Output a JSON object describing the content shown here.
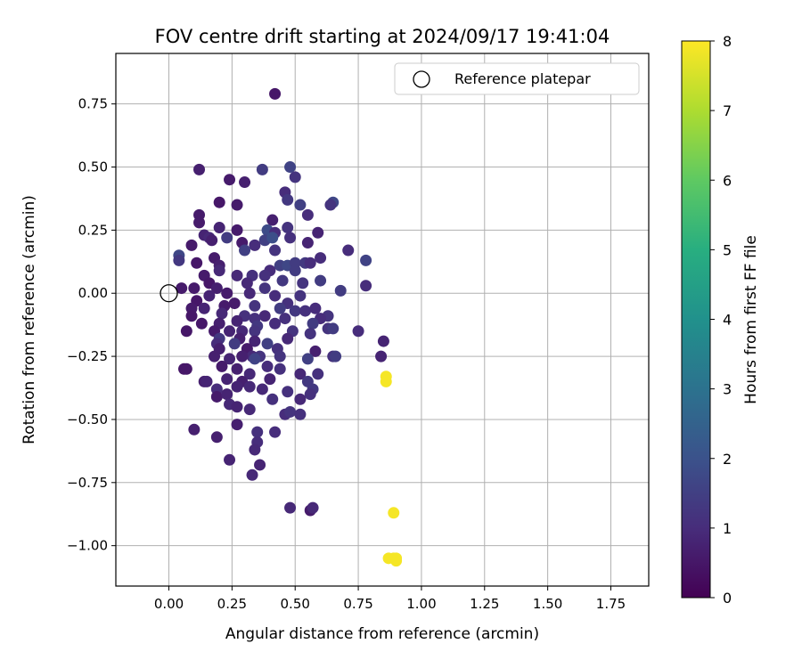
{
  "chart_data": {
    "type": "scatter",
    "title": "FOV centre drift starting at 2024/09/17 19:41:04",
    "xlabel": "Angular distance from reference (arcmin)",
    "ylabel": "Rotation from reference (arcmin)",
    "xlim": [
      -0.21,
      1.9
    ],
    "ylim": [
      -1.16,
      0.95
    ],
    "xticks": [
      "0.00",
      "0.25",
      "0.50",
      "0.75",
      "1.00",
      "1.25",
      "1.50",
      "1.75"
    ],
    "xtick_values": [
      0,
      0.25,
      0.5,
      0.75,
      1.0,
      1.25,
      1.5,
      1.75
    ],
    "yticks": [
      "0.75",
      "0.50",
      "0.25",
      "0.00",
      "−0.25",
      "−0.50",
      "−0.75",
      "−1.00"
    ],
    "ytick_values": [
      0.75,
      0.5,
      0.25,
      0,
      -0.25,
      -0.5,
      -0.75,
      -1.0
    ],
    "grid": true,
    "legend": {
      "position": "top-right",
      "entries": [
        "Reference platepar"
      ]
    },
    "reference_point": {
      "x": 0,
      "y": 0
    },
    "colorbar": {
      "label": "Hours from first FF file",
      "range": [
        0,
        8
      ],
      "ticks": [
        "0",
        "1",
        "2",
        "3",
        "4",
        "5",
        "6",
        "7",
        "8"
      ],
      "colormap": "viridis"
    },
    "points": [
      [
        0.42,
        0.79,
        0.5
      ],
      [
        0.12,
        0.49,
        0.7
      ],
      [
        0.37,
        0.49,
        1.4
      ],
      [
        0.48,
        0.5,
        1.6
      ],
      [
        0.5,
        0.46,
        1.2
      ],
      [
        0.24,
        0.45,
        0.6
      ],
      [
        0.3,
        0.44,
        0.7
      ],
      [
        0.46,
        0.4,
        1.0
      ],
      [
        0.47,
        0.37,
        1.3
      ],
      [
        0.2,
        0.36,
        0.5
      ],
      [
        0.27,
        0.35,
        0.6
      ],
      [
        0.52,
        0.35,
        1.5
      ],
      [
        0.65,
        0.36,
        1.7
      ],
      [
        0.64,
        0.35,
        1.2
      ],
      [
        0.55,
        0.31,
        1.0
      ],
      [
        0.12,
        0.31,
        0.6
      ],
      [
        0.12,
        0.28,
        0.6
      ],
      [
        0.41,
        0.29,
        0.7
      ],
      [
        0.2,
        0.26,
        0.8
      ],
      [
        0.27,
        0.25,
        0.6
      ],
      [
        0.39,
        0.25,
        1.8
      ],
      [
        0.42,
        0.24,
        1.0
      ],
      [
        0.47,
        0.26,
        1.2
      ],
      [
        0.59,
        0.24,
        0.8
      ],
      [
        0.14,
        0.23,
        0.8
      ],
      [
        0.16,
        0.22,
        0.9
      ],
      [
        0.23,
        0.22,
        1.4
      ],
      [
        0.17,
        0.21,
        0.7
      ],
      [
        0.38,
        0.21,
        1.5
      ],
      [
        0.41,
        0.22,
        1.9
      ],
      [
        0.48,
        0.22,
        1.1
      ],
      [
        0.29,
        0.2,
        0.6
      ],
      [
        0.09,
        0.19,
        0.6
      ],
      [
        0.34,
        0.19,
        1.0
      ],
      [
        0.55,
        0.2,
        0.8
      ],
      [
        0.3,
        0.17,
        1.5
      ],
      [
        0.42,
        0.17,
        1.2
      ],
      [
        0.71,
        0.17,
        1.0
      ],
      [
        0.18,
        0.14,
        0.6
      ],
      [
        0.04,
        0.15,
        1.7
      ],
      [
        0.04,
        0.13,
        1.3
      ],
      [
        0.2,
        0.11,
        0.7
      ],
      [
        0.11,
        0.12,
        0.5
      ],
      [
        0.6,
        0.14,
        1.0
      ],
      [
        0.44,
        0.11,
        1.5
      ],
      [
        0.47,
        0.11,
        1.7
      ],
      [
        0.5,
        0.12,
        1.4
      ],
      [
        0.54,
        0.12,
        1.3
      ],
      [
        0.56,
        0.12,
        1.0
      ],
      [
        0.78,
        0.13,
        1.6
      ],
      [
        0.78,
        0.03,
        1.0
      ],
      [
        0.5,
        0.09,
        1.4
      ],
      [
        0.4,
        0.09,
        1.0
      ],
      [
        0.2,
        0.09,
        0.9
      ],
      [
        0.33,
        0.07,
        1.1
      ],
      [
        0.14,
        0.07,
        0.6
      ],
      [
        0.38,
        0.07,
        1.1
      ],
      [
        0.27,
        0.07,
        0.9
      ],
      [
        0.31,
        0.04,
        0.9
      ],
      [
        0.45,
        0.05,
        1.3
      ],
      [
        0.53,
        0.04,
        1.2
      ],
      [
        0.6,
        0.05,
        1.4
      ],
      [
        0.16,
        0.04,
        0.5
      ],
      [
        0.05,
        0.02,
        0.6
      ],
      [
        0.1,
        0.02,
        0.6
      ],
      [
        0.38,
        0.02,
        1.2
      ],
      [
        0.19,
        0.02,
        0.7
      ],
      [
        0.68,
        0.01,
        1.4
      ],
      [
        0.32,
        0.0,
        0.9
      ],
      [
        0.23,
        0.0,
        0.6
      ],
      [
        0.42,
        -0.01,
        1.0
      ],
      [
        0.16,
        -0.01,
        0.8
      ],
      [
        0.52,
        -0.01,
        1.2
      ],
      [
        0.11,
        -0.03,
        0.5
      ],
      [
        0.26,
        -0.04,
        0.6
      ],
      [
        0.47,
        -0.04,
        1.1
      ],
      [
        0.09,
        -0.06,
        0.6
      ],
      [
        0.14,
        -0.06,
        0.8
      ],
      [
        0.22,
        -0.05,
        0.6
      ],
      [
        0.34,
        -0.05,
        1.2
      ],
      [
        0.44,
        -0.06,
        1.4
      ],
      [
        0.5,
        -0.07,
        1.3
      ],
      [
        0.54,
        -0.07,
        1.1
      ],
      [
        0.58,
        -0.06,
        1.0
      ],
      [
        0.09,
        -0.09,
        0.5
      ],
      [
        0.21,
        -0.08,
        0.9
      ],
      [
        0.3,
        -0.09,
        1.1
      ],
      [
        0.38,
        -0.09,
        0.9
      ],
      [
        0.63,
        -0.09,
        1.2
      ],
      [
        0.34,
        -0.1,
        1.1
      ],
      [
        0.6,
        -0.1,
        1.0
      ],
      [
        0.27,
        -0.11,
        0.8
      ],
      [
        0.46,
        -0.1,
        1.1
      ],
      [
        0.13,
        -0.12,
        0.5
      ],
      [
        0.2,
        -0.12,
        0.7
      ],
      [
        0.35,
        -0.13,
        1.3
      ],
      [
        0.42,
        -0.12,
        1.0
      ],
      [
        0.57,
        -0.12,
        1.4
      ],
      [
        0.18,
        -0.15,
        0.6
      ],
      [
        0.24,
        -0.15,
        0.8
      ],
      [
        0.34,
        -0.15,
        1.2
      ],
      [
        0.49,
        -0.15,
        1.2
      ],
      [
        0.63,
        -0.14,
        1.2
      ],
      [
        0.29,
        -0.15,
        0.9
      ],
      [
        0.56,
        -0.16,
        1.2
      ],
      [
        0.75,
        -0.15,
        1.0
      ],
      [
        0.07,
        -0.15,
        0.5
      ],
      [
        0.65,
        -0.14,
        1.4
      ],
      [
        0.2,
        -0.18,
        1.3
      ],
      [
        0.28,
        -0.18,
        0.7
      ],
      [
        0.34,
        -0.19,
        0.8
      ],
      [
        0.47,
        -0.18,
        0.9
      ],
      [
        0.19,
        -0.2,
        1.0
      ],
      [
        0.39,
        -0.2,
        1.5
      ],
      [
        0.26,
        -0.2,
        1.4
      ],
      [
        0.31,
        -0.22,
        0.6
      ],
      [
        0.43,
        -0.22,
        1.1
      ],
      [
        0.85,
        -0.19,
        0.8
      ],
      [
        0.2,
        -0.22,
        0.7
      ],
      [
        0.58,
        -0.23,
        0.7
      ],
      [
        0.33,
        -0.25,
        0.9
      ],
      [
        0.36,
        -0.25,
        1.2
      ],
      [
        0.44,
        -0.25,
        1.2
      ],
      [
        0.18,
        -0.25,
        0.7
      ],
      [
        0.29,
        -0.25,
        0.7
      ],
      [
        0.65,
        -0.25,
        1.1
      ],
      [
        0.66,
        -0.25,
        1.4
      ],
      [
        0.55,
        -0.26,
        1.5
      ],
      [
        0.24,
        -0.26,
        0.8
      ],
      [
        0.34,
        -0.26,
        1.6
      ],
      [
        0.06,
        -0.3,
        0.5
      ],
      [
        0.07,
        -0.3,
        0.5
      ],
      [
        0.21,
        -0.29,
        0.6
      ],
      [
        0.27,
        -0.3,
        0.7
      ],
      [
        0.39,
        -0.29,
        1.0
      ],
      [
        0.32,
        -0.32,
        0.9
      ],
      [
        0.44,
        -0.3,
        1.1
      ],
      [
        0.52,
        -0.32,
        0.9
      ],
      [
        0.59,
        -0.32,
        1.1
      ],
      [
        0.84,
        -0.25,
        0.8
      ],
      [
        0.14,
        -0.35,
        0.7
      ],
      [
        0.15,
        -0.35,
        0.8
      ],
      [
        0.23,
        -0.34,
        0.8
      ],
      [
        0.29,
        -0.35,
        0.7
      ],
      [
        0.4,
        -0.34,
        0.8
      ],
      [
        0.55,
        -0.35,
        1.3
      ],
      [
        0.86,
        -0.33,
        7.9
      ],
      [
        0.86,
        -0.35,
        7.9
      ],
      [
        0.19,
        -0.38,
        1.0
      ],
      [
        0.27,
        -0.37,
        0.8
      ],
      [
        0.32,
        -0.37,
        0.9
      ],
      [
        0.37,
        -0.38,
        0.9
      ],
      [
        0.47,
        -0.39,
        1.1
      ],
      [
        0.57,
        -0.38,
        1.3
      ],
      [
        0.56,
        -0.4,
        1.1
      ],
      [
        0.19,
        -0.41,
        0.6
      ],
      [
        0.23,
        -0.4,
        0.8
      ],
      [
        0.41,
        -0.42,
        1.1
      ],
      [
        0.52,
        -0.42,
        0.9
      ],
      [
        0.24,
        -0.44,
        0.9
      ],
      [
        0.27,
        -0.45,
        0.8
      ],
      [
        0.32,
        -0.46,
        0.9
      ],
      [
        0.46,
        -0.48,
        1.0
      ],
      [
        0.48,
        -0.47,
        1.2
      ],
      [
        0.52,
        -0.48,
        1.1
      ],
      [
        0.27,
        -0.52,
        0.7
      ],
      [
        0.1,
        -0.54,
        0.7
      ],
      [
        0.19,
        -0.57,
        0.7
      ],
      [
        0.35,
        -0.55,
        1.1
      ],
      [
        0.35,
        -0.59,
        1.0
      ],
      [
        0.42,
        -0.55,
        1.0
      ],
      [
        0.34,
        -0.62,
        0.9
      ],
      [
        0.24,
        -0.66,
        0.8
      ],
      [
        0.36,
        -0.68,
        0.8
      ],
      [
        0.33,
        -0.72,
        0.9
      ],
      [
        0.48,
        -0.85,
        0.9
      ],
      [
        0.56,
        -0.86,
        0.6
      ],
      [
        0.57,
        -0.85,
        0.9
      ],
      [
        0.89,
        -0.87,
        7.9
      ],
      [
        0.87,
        -1.05,
        7.9
      ],
      [
        0.89,
        -1.05,
        7.9
      ],
      [
        0.9,
        -1.06,
        7.9
      ],
      [
        0.9,
        -1.05,
        7.9
      ]
    ]
  }
}
